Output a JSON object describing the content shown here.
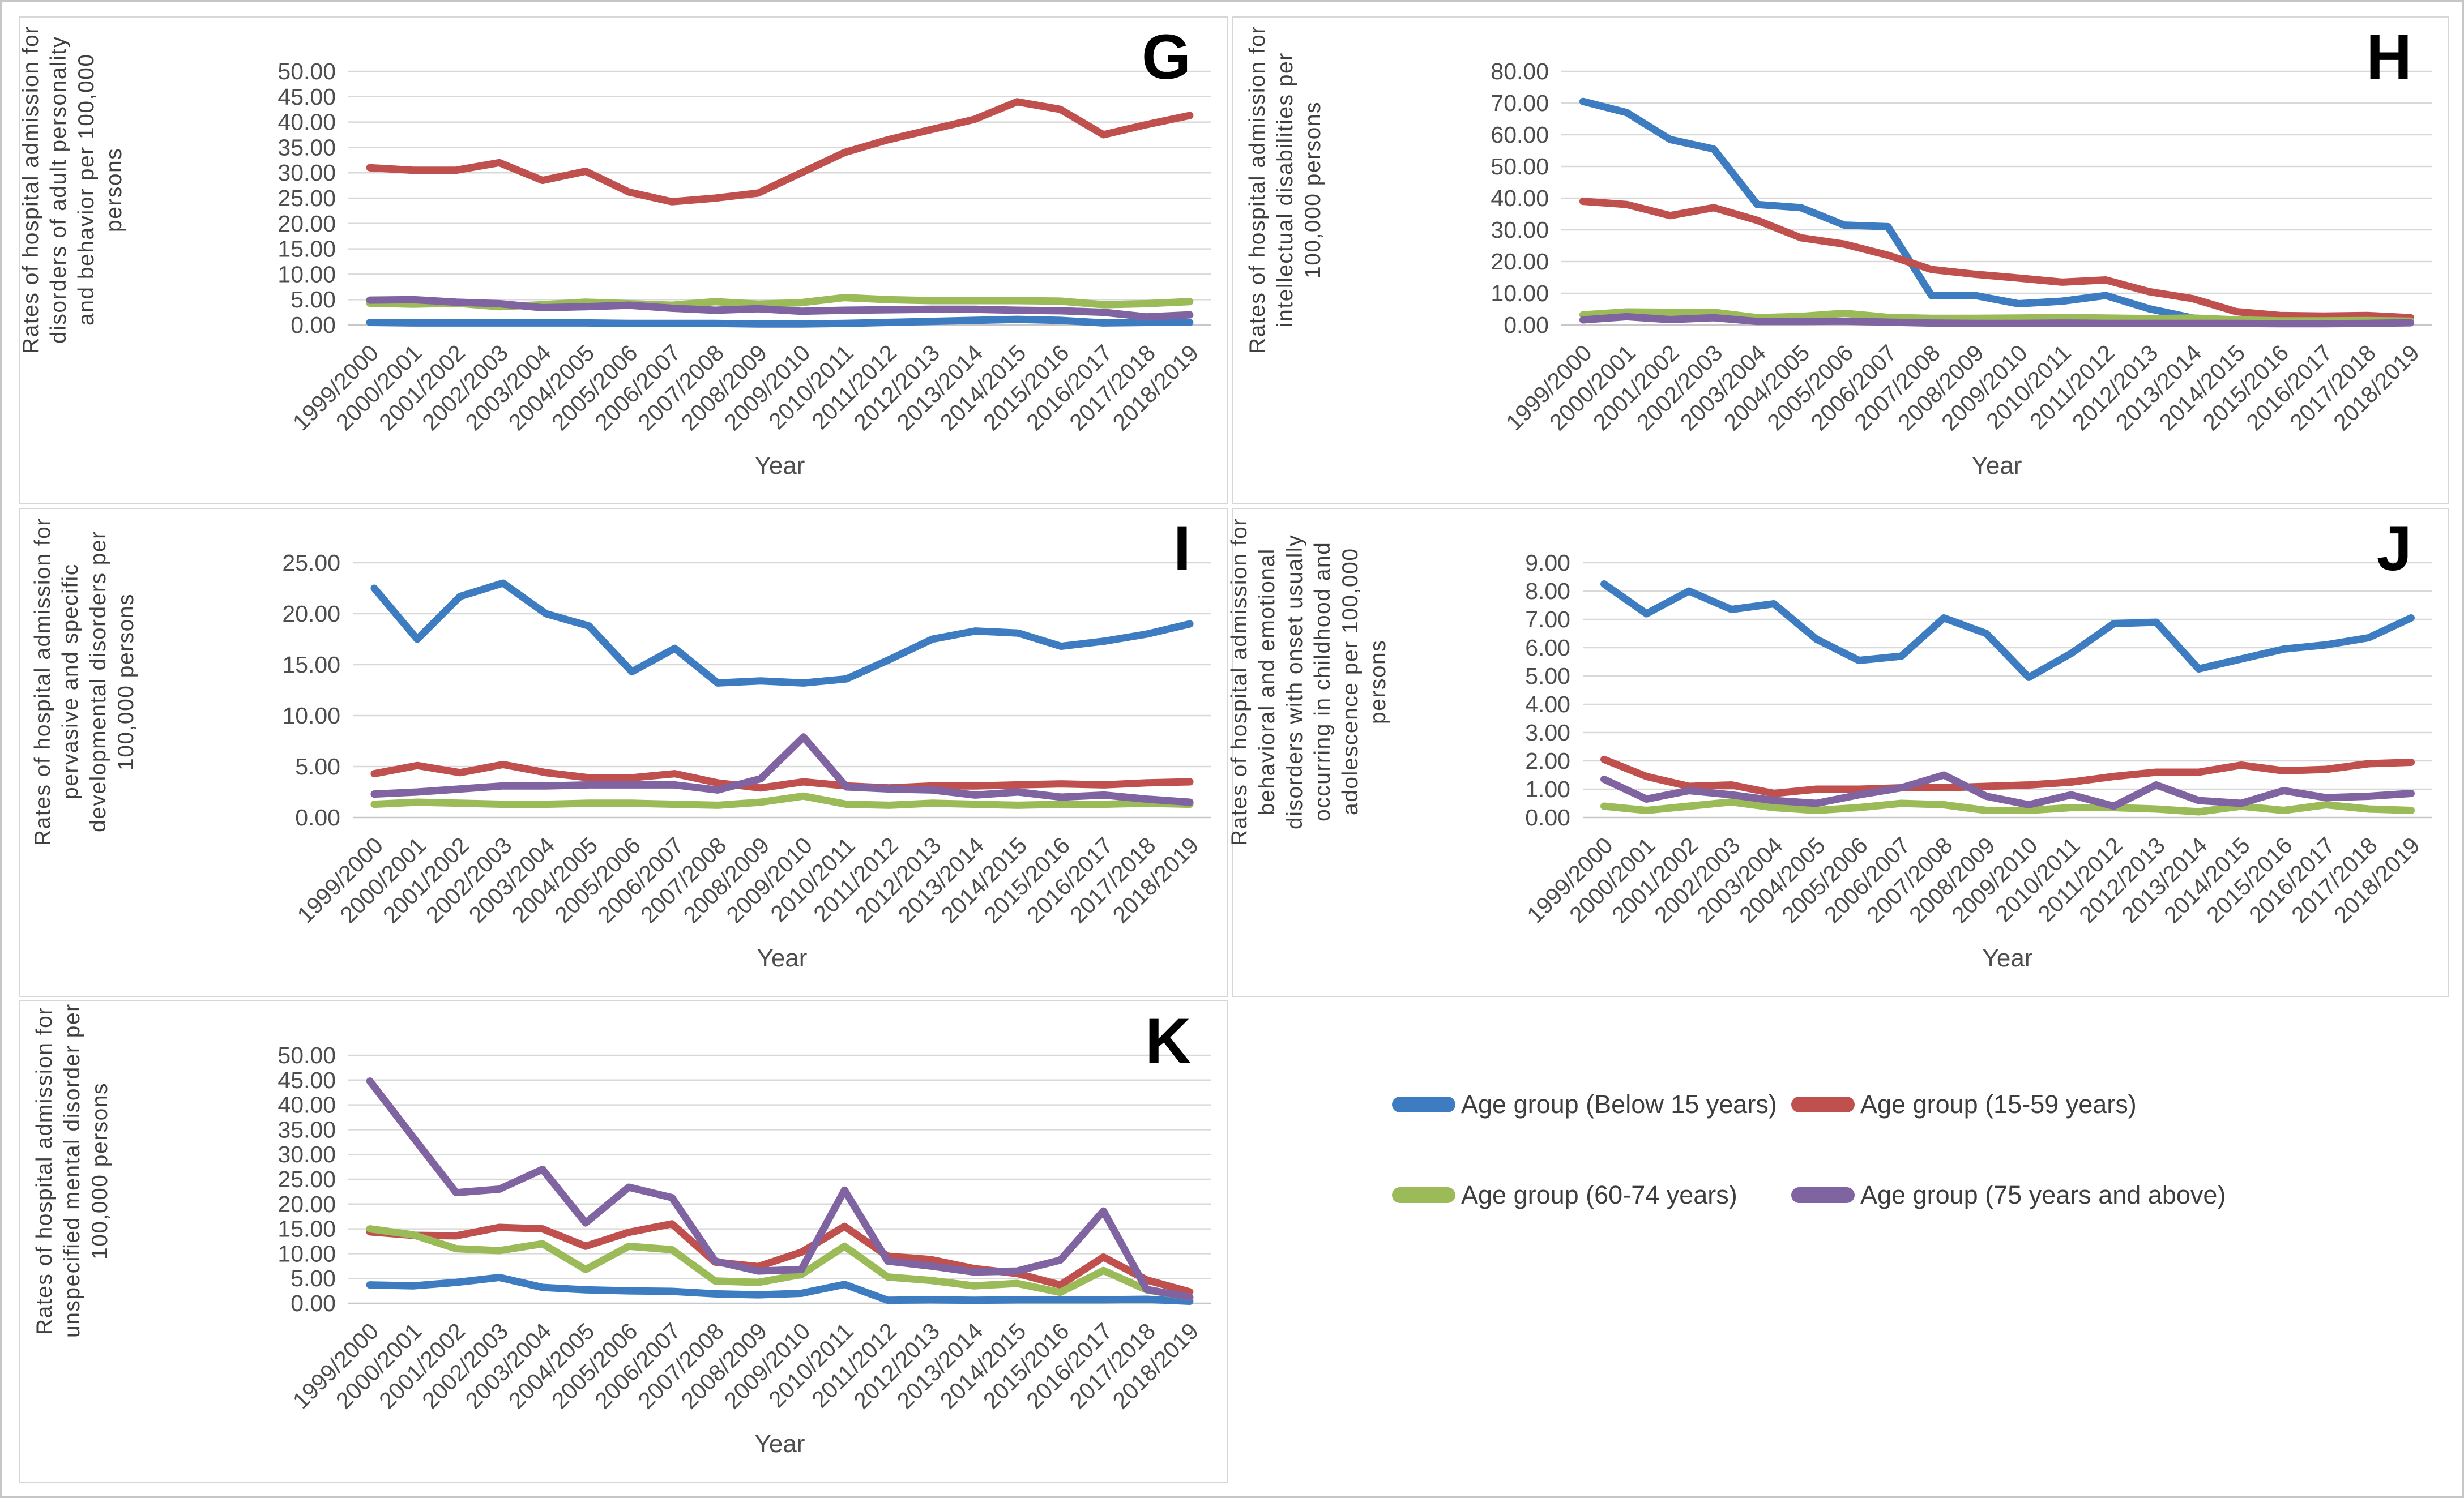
{
  "palette": {
    "blue": "#3E7CC1",
    "red": "#C0504D",
    "green": "#9BBB59",
    "purple": "#8064A2",
    "grid": "#D9D9D9",
    "axis_text": "#4D4D4D"
  },
  "legend": {
    "items": [
      {
        "label": "Age group (Below 15 years)",
        "color": "#3E7CC1"
      },
      {
        "label": "Age group (15-59 years)",
        "color": "#C0504D"
      },
      {
        "label": "Age group (60-74 years)",
        "color": "#9BBB59"
      },
      {
        "label": "Age group (75 years and above)",
        "color": "#8064A2"
      }
    ]
  },
  "chart_data": [
    {
      "type": "line",
      "letter": "G",
      "y_title": "Rates of hospital admission for disorders of adult personality and behavior per 100,000 persons",
      "x_title": "Year",
      "y_max": 50,
      "y_step": 5,
      "y_decimals": 2,
      "grid": true,
      "categories": [
        "1999/2000",
        "2000/2001",
        "2001/2002",
        "2002/2003",
        "2003/2004",
        "2004/2005",
        "2005/2006",
        "2006/2007",
        "2007/2008",
        "2008/2009",
        "2009/2010",
        "2010/2011",
        "2011/2012",
        "2012/2013",
        "2013/2014",
        "2014/2015",
        "2015/2016",
        "2016/2017",
        "2017/2018",
        "2018/2019"
      ],
      "series": [
        {
          "name": "Age group (Below 15 years)",
          "color": "#3E7CC1",
          "values": [
            0.5,
            0.4,
            0.4,
            0.4,
            0.4,
            0.4,
            0.3,
            0.3,
            0.3,
            0.2,
            0.2,
            0.3,
            0.5,
            0.7,
            0.9,
            1.1,
            0.9,
            0.4,
            0.5,
            0.5
          ]
        },
        {
          "name": "Age group (15-59 years)",
          "color": "#C0504D",
          "values": [
            31.0,
            30.5,
            30.5,
            32.0,
            28.5,
            30.3,
            26.2,
            24.3,
            25.0,
            26.0,
            30.0,
            34.0,
            36.5,
            38.5,
            40.5,
            44.0,
            42.5,
            37.5,
            39.5,
            41.3
          ]
        },
        {
          "name": "Age group (60-74 years)",
          "color": "#9BBB59",
          "values": [
            4.3,
            4.1,
            4.3,
            3.6,
            4.0,
            4.5,
            4.2,
            3.9,
            4.6,
            4.1,
            4.4,
            5.4,
            5.0,
            4.8,
            4.8,
            4.8,
            4.7,
            4.0,
            4.2,
            4.6
          ]
        },
        {
          "name": "Age group (75 years and above)",
          "color": "#8064A2",
          "values": [
            4.9,
            5.0,
            4.5,
            4.2,
            3.4,
            3.6,
            3.9,
            3.3,
            2.9,
            3.2,
            2.7,
            2.9,
            3.0,
            3.1,
            3.1,
            2.9,
            2.8,
            2.5,
            1.6,
            2.0
          ]
        }
      ]
    },
    {
      "type": "line",
      "letter": "H",
      "y_title": "Rates of hospital admission for intellectual disabilities per 100,000 persons",
      "x_title": "Year",
      "y_max": 80,
      "y_step": 10,
      "y_decimals": 2,
      "grid": true,
      "categories": [
        "1999/2000",
        "2000/2001",
        "2001/2002",
        "2002/2003",
        "2003/2004",
        "2004/2005",
        "2005/2006",
        "2006/2007",
        "2007/2008",
        "2008/2009",
        "2009/2010",
        "2010/2011",
        "2011/2012",
        "2012/2013",
        "2013/2014",
        "2014/2015",
        "2015/2016",
        "2016/2017",
        "2017/2018",
        "2018/2019"
      ],
      "series": [
        {
          "name": "Age group (Below 15 years)",
          "color": "#3E7CC1",
          "values": [
            70.5,
            67.0,
            58.5,
            55.5,
            38.0,
            37.0,
            31.5,
            31.0,
            9.3,
            9.3,
            6.7,
            7.5,
            9.3,
            5.1,
            2.2,
            1.0,
            0.9,
            0.9,
            0.9,
            0.9
          ]
        },
        {
          "name": "Age group (15-59 years)",
          "color": "#C0504D",
          "values": [
            39.0,
            38.0,
            34.5,
            37.0,
            33.0,
            27.5,
            25.5,
            22.0,
            17.5,
            16.0,
            14.8,
            13.5,
            14.2,
            10.5,
            8.3,
            4.2,
            3.0,
            2.8,
            3.0,
            2.3
          ]
        },
        {
          "name": "Age group (60-74 years)",
          "color": "#9BBB59",
          "values": [
            3.2,
            4.1,
            4.0,
            4.0,
            2.3,
            2.7,
            3.7,
            2.4,
            2.1,
            2.1,
            2.2,
            2.4,
            2.2,
            2.0,
            2.2,
            1.6,
            1.3,
            1.3,
            1.4,
            1.2
          ]
        },
        {
          "name": "Age group (75 years and above)",
          "color": "#8064A2",
          "values": [
            1.6,
            2.6,
            1.7,
            2.3,
            1.1,
            1.1,
            1.2,
            0.9,
            0.6,
            0.5,
            0.5,
            0.6,
            0.5,
            0.5,
            0.5,
            0.5,
            0.4,
            0.4,
            0.5,
            0.7
          ]
        }
      ]
    },
    {
      "type": "line",
      "letter": "I",
      "y_title": "Rates of hospital admission for pervasive and specific developmental disorders per 100,000 persons",
      "x_title": "Year",
      "y_max": 25,
      "y_step": 5,
      "y_decimals": 2,
      "grid": true,
      "categories": [
        "1999/2000",
        "2000/2001",
        "2001/2002",
        "2002/2003",
        "2003/2004",
        "2004/2005",
        "2005/2006",
        "2006/2007",
        "2007/2008",
        "2008/2009",
        "2009/2010",
        "2010/2011",
        "2011/2012",
        "2012/2013",
        "2013/2014",
        "2014/2015",
        "2015/2016",
        "2016/2017",
        "2017/2018",
        "2018/2019"
      ],
      "series": [
        {
          "name": "Age group (Below 15 years)",
          "color": "#3E7CC1",
          "values": [
            22.5,
            17.5,
            21.7,
            23.0,
            20.0,
            18.8,
            14.3,
            16.6,
            13.2,
            13.4,
            13.2,
            13.6,
            15.5,
            17.5,
            18.3,
            18.1,
            16.8,
            17.3,
            18.0,
            19.0
          ]
        },
        {
          "name": "Age group (15-59 years)",
          "color": "#C0504D",
          "values": [
            4.3,
            5.1,
            4.4,
            5.2,
            4.4,
            3.9,
            3.9,
            4.3,
            3.4,
            2.9,
            3.5,
            3.1,
            2.9,
            3.1,
            3.1,
            3.2,
            3.3,
            3.2,
            3.4,
            3.5
          ]
        },
        {
          "name": "Age group (60-74 years)",
          "color": "#9BBB59",
          "values": [
            1.3,
            1.5,
            1.4,
            1.3,
            1.3,
            1.4,
            1.4,
            1.3,
            1.2,
            1.5,
            2.1,
            1.3,
            1.2,
            1.4,
            1.3,
            1.2,
            1.3,
            1.3,
            1.4,
            1.3
          ]
        },
        {
          "name": "Age group (75 years and above)",
          "color": "#8064A2",
          "values": [
            2.3,
            2.5,
            2.8,
            3.1,
            3.1,
            3.2,
            3.2,
            3.2,
            2.7,
            3.8,
            7.9,
            3.0,
            2.8,
            2.7,
            2.2,
            2.5,
            2.0,
            2.2,
            1.8,
            1.5
          ]
        }
      ]
    },
    {
      "type": "line",
      "letter": "J",
      "y_title": "Rates of hospital admission for behavioral and emotional disorders with onset usually occurring in childhood and adolescence per 100,000 persons",
      "x_title": "Year",
      "y_max": 9,
      "y_step": 1,
      "y_decimals": 2,
      "grid": true,
      "categories": [
        "1999/2000",
        "2000/2001",
        "2001/2002",
        "2002/2003",
        "2003/2004",
        "2004/2005",
        "2005/2006",
        "2006/2007",
        "2007/2008",
        "2008/2009",
        "2009/2010",
        "2010/2011",
        "2011/2012",
        "2012/2013",
        "2013/2014",
        "2014/2015",
        "2015/2016",
        "2016/2017",
        "2017/2018",
        "2018/2019"
      ],
      "series": [
        {
          "name": "Age group (Below 15 years)",
          "color": "#3E7CC1",
          "values": [
            8.25,
            7.2,
            8.0,
            7.35,
            7.55,
            6.3,
            5.55,
            5.7,
            7.05,
            6.5,
            4.95,
            5.8,
            6.85,
            6.9,
            5.25,
            5.6,
            5.95,
            6.1,
            6.35,
            7.05
          ]
        },
        {
          "name": "Age group (15-59 years)",
          "color": "#C0504D",
          "values": [
            2.05,
            1.45,
            1.1,
            1.15,
            0.85,
            1.0,
            1.0,
            1.05,
            1.05,
            1.1,
            1.15,
            1.25,
            1.45,
            1.6,
            1.6,
            1.85,
            1.65,
            1.7,
            1.9,
            1.95
          ]
        },
        {
          "name": "Age group (60-74 years)",
          "color": "#9BBB59",
          "values": [
            0.4,
            0.25,
            0.4,
            0.55,
            0.35,
            0.25,
            0.35,
            0.5,
            0.45,
            0.25,
            0.25,
            0.35,
            0.35,
            0.3,
            0.2,
            0.4,
            0.25,
            0.45,
            0.3,
            0.25
          ]
        },
        {
          "name": "Age group (75 years and above)",
          "color": "#8064A2",
          "values": [
            1.35,
            0.65,
            0.95,
            0.8,
            0.6,
            0.5,
            0.8,
            1.05,
            1.5,
            0.75,
            0.45,
            0.8,
            0.4,
            1.15,
            0.6,
            0.5,
            0.95,
            0.7,
            0.75,
            0.85
          ]
        }
      ]
    },
    {
      "type": "line",
      "letter": "K",
      "y_title": "Rates of hospital admission for unspecified mental disorder per 100,000 persons",
      "x_title": "Year",
      "y_max": 50,
      "y_step": 5,
      "y_decimals": 2,
      "grid": true,
      "categories": [
        "1999/2000",
        "2000/2001",
        "2001/2002",
        "2002/2003",
        "2003/2004",
        "2004/2005",
        "2005/2006",
        "2006/2007",
        "2007/2008",
        "2008/2009",
        "2009/2010",
        "2010/2011",
        "2011/2012",
        "2012/2013",
        "2013/2014",
        "2014/2015",
        "2015/2016",
        "2016/2017",
        "2017/2018",
        "2018/2019"
      ],
      "series": [
        {
          "name": "Age group (Below 15 years)",
          "color": "#3E7CC1",
          "values": [
            3.7,
            3.5,
            4.2,
            5.2,
            3.2,
            2.7,
            2.5,
            2.4,
            1.9,
            1.7,
            2.0,
            3.8,
            0.6,
            0.7,
            0.6,
            0.7,
            0.7,
            0.7,
            0.8,
            0.4
          ]
        },
        {
          "name": "Age group (15-59 years)",
          "color": "#C0504D",
          "values": [
            14.4,
            13.7,
            13.6,
            15.3,
            15.0,
            11.5,
            14.3,
            16.0,
            8.3,
            7.4,
            10.3,
            15.5,
            9.5,
            8.8,
            7.0,
            6.0,
            3.7,
            9.3,
            4.7,
            2.3
          ]
        },
        {
          "name": "Age group (60-74 years)",
          "color": "#9BBB59",
          "values": [
            15.0,
            13.8,
            11.0,
            10.6,
            12.0,
            6.8,
            11.5,
            10.8,
            4.5,
            4.2,
            5.8,
            11.5,
            5.3,
            4.6,
            3.5,
            4.0,
            2.2,
            6.6,
            2.7,
            1.2
          ]
        },
        {
          "name": "Age group (75 years and above)",
          "color": "#8064A2",
          "values": [
            44.8,
            33.5,
            22.3,
            23.0,
            27.0,
            16.2,
            23.4,
            21.3,
            8.5,
            6.5,
            6.8,
            22.8,
            8.5,
            7.5,
            6.3,
            6.5,
            8.7,
            18.6,
            2.8,
            1.2
          ]
        }
      ]
    }
  ]
}
